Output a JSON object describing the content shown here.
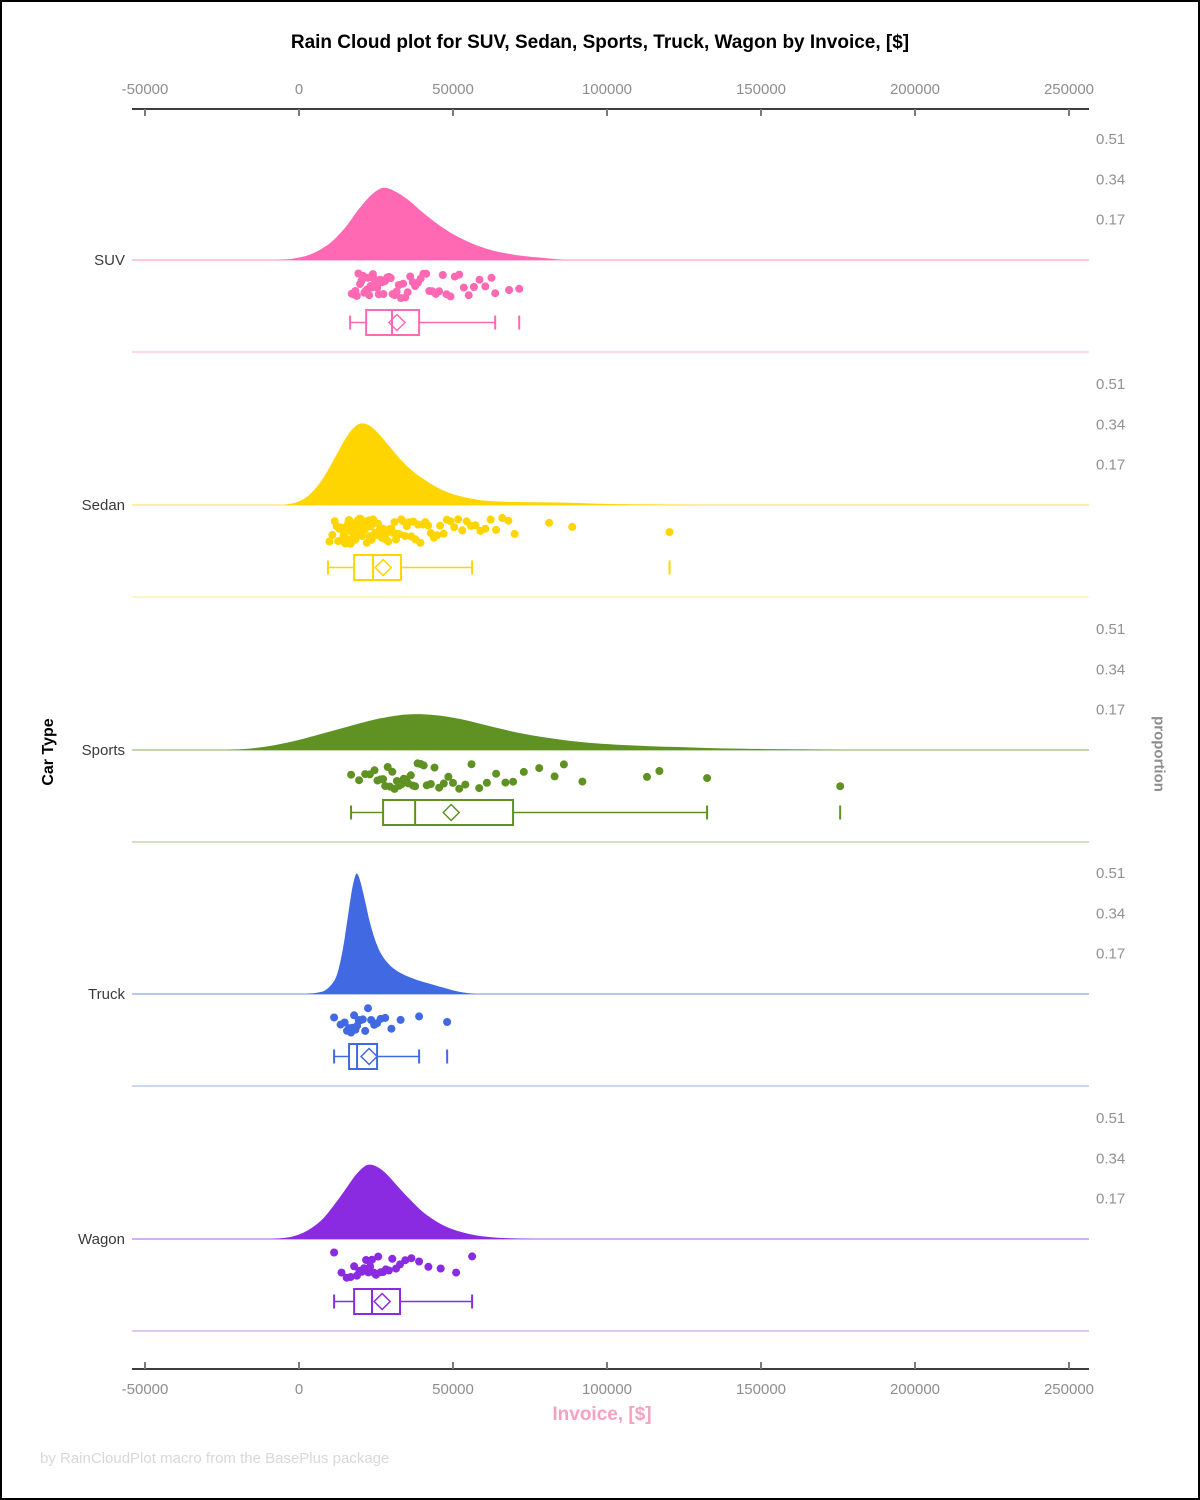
{
  "title": "Rain Cloud plot for SUV, Sedan, Sports, Truck, Wagon by Invoice, [$]",
  "footer": "by RainCloudPlot macro from the BasePlus package",
  "colors": {
    "axis_line": "#3d3d3d",
    "tick_label": "#8e8e8e",
    "category_label": "#3a3a3a",
    "proportion_label": "#919191",
    "x_label_pink": "#f6a2bf",
    "footer_gray": "#d8d8d8"
  },
  "chart_data": {
    "type": "raincloud",
    "title": "Rain Cloud plot for SUV, Sedan, Sports, Truck, Wagon by Invoice, [$]",
    "xlabel": "Invoice, [$]",
    "ylabel": "Car Type",
    "ylabel2": "proportion",
    "x_range": [
      -50000,
      250000
    ],
    "x_ticks": [
      -50000,
      0,
      50000,
      100000,
      150000,
      200000,
      250000
    ],
    "proportion_ticks": [
      0.17,
      0.34,
      0.51
    ],
    "legend": "none",
    "grid": "off",
    "series": [
      {
        "name": "SUV",
        "color": "#FF69B4",
        "density": [
          [
            -8000,
            0
          ],
          [
            -2000,
            0.006
          ],
          [
            4000,
            0.025
          ],
          [
            10000,
            0.07
          ],
          [
            15000,
            0.135
          ],
          [
            19000,
            0.205
          ],
          [
            23000,
            0.265
          ],
          [
            26000,
            0.295
          ],
          [
            28500,
            0.3
          ],
          [
            32000,
            0.28
          ],
          [
            36000,
            0.245
          ],
          [
            40000,
            0.2
          ],
          [
            45000,
            0.15
          ],
          [
            50000,
            0.108
          ],
          [
            56000,
            0.07
          ],
          [
            62000,
            0.043
          ],
          [
            68000,
            0.026
          ],
          [
            74000,
            0.015
          ],
          [
            80000,
            0.008
          ],
          [
            86000,
            0
          ]
        ],
        "box": {
          "whisker_low": 16600,
          "q1": 21800,
          "median": 30200,
          "q3": 39000,
          "whisker_high": 63700,
          "mean": 31800,
          "outliers": [
            71500
          ]
        },
        "points": [
          17100,
          17800,
          18300,
          18800,
          19300,
          19800,
          20300,
          20800,
          21200,
          21600,
          22000,
          22400,
          22800,
          23200,
          23600,
          24000,
          24400,
          24900,
          25400,
          25900,
          26400,
          26900,
          27400,
          28000,
          28600,
          29200,
          29800,
          30400,
          31000,
          31700,
          32400,
          33100,
          33800,
          34500,
          35300,
          36100,
          36900,
          37700,
          38600,
          39500,
          40400,
          41300,
          42300,
          43300,
          44400,
          45500,
          46700,
          47900,
          49200,
          50600,
          52000,
          53500,
          55100,
          56800,
          58600,
          60500,
          62500,
          63700,
          68200,
          71500
        ]
      },
      {
        "name": "Sedan",
        "color": "#FFD500",
        "density": [
          [
            -5000,
            0
          ],
          [
            0,
            0.015
          ],
          [
            4000,
            0.05
          ],
          [
            8000,
            0.115
          ],
          [
            12000,
            0.205
          ],
          [
            15000,
            0.275
          ],
          [
            18000,
            0.325
          ],
          [
            20500,
            0.34
          ],
          [
            23000,
            0.33
          ],
          [
            26000,
            0.295
          ],
          [
            29000,
            0.25
          ],
          [
            33000,
            0.19
          ],
          [
            37000,
            0.14
          ],
          [
            42000,
            0.095
          ],
          [
            47000,
            0.06
          ],
          [
            52000,
            0.038
          ],
          [
            58000,
            0.022
          ],
          [
            64000,
            0.015
          ],
          [
            72000,
            0.012
          ],
          [
            80000,
            0.011
          ],
          [
            88000,
            0.009
          ],
          [
            96000,
            0.006
          ],
          [
            106000,
            0.003
          ],
          [
            118000,
            0.0015
          ],
          [
            130000,
            0
          ]
        ],
        "box": {
          "whisker_low": 9400,
          "q1": 17900,
          "median": 24000,
          "q3": 33100,
          "whisker_high": 56200,
          "mean": 27300,
          "outliers": [
            120300
          ]
        },
        "points": [
          9900,
          10800,
          11600,
          12200,
          12700,
          13100,
          13500,
          13900,
          14200,
          14500,
          14800,
          15000,
          15300,
          15500,
          15700,
          15900,
          16100,
          16300,
          16500,
          16700,
          16900,
          17100,
          17300,
          17500,
          17700,
          17900,
          18100,
          18300,
          18500,
          18700,
          18900,
          19100,
          19300,
          19500,
          19700,
          19900,
          20100,
          20300,
          20500,
          20700,
          20900,
          21100,
          21400,
          21700,
          22000,
          22300,
          22600,
          22900,
          23200,
          23500,
          23800,
          24100,
          24400,
          24700,
          25000,
          25300,
          25700,
          26100,
          26500,
          26900,
          27300,
          27700,
          28100,
          28500,
          29000,
          29500,
          30000,
          30500,
          31000,
          31500,
          32000,
          32600,
          33200,
          33800,
          34400,
          35000,
          35700,
          36400,
          37100,
          37800,
          38600,
          39400,
          40200,
          41000,
          41900,
          42800,
          43800,
          44800,
          45800,
          46900,
          48000,
          49200,
          50400,
          51700,
          53000,
          54400,
          55800,
          57300,
          58900,
          60500,
          62200,
          64000,
          66000,
          68000,
          70000,
          81200,
          88700,
          120300
        ]
      },
      {
        "name": "Sports",
        "color": "#5F9222",
        "density": [
          [
            -24000,
            0
          ],
          [
            -16000,
            0.006
          ],
          [
            -8000,
            0.02
          ],
          [
            0,
            0.042
          ],
          [
            8000,
            0.07
          ],
          [
            16000,
            0.098
          ],
          [
            24000,
            0.125
          ],
          [
            30000,
            0.14
          ],
          [
            35000,
            0.148
          ],
          [
            40000,
            0.149
          ],
          [
            46000,
            0.143
          ],
          [
            52000,
            0.13
          ],
          [
            58000,
            0.112
          ],
          [
            65000,
            0.09
          ],
          [
            72000,
            0.07
          ],
          [
            80000,
            0.052
          ],
          [
            88000,
            0.038
          ],
          [
            96000,
            0.028
          ],
          [
            105000,
            0.021
          ],
          [
            114000,
            0.016
          ],
          [
            124000,
            0.012
          ],
          [
            134000,
            0.008
          ],
          [
            145000,
            0.005
          ],
          [
            157000,
            0.003
          ],
          [
            168000,
            0.0015
          ],
          [
            178000,
            0
          ]
        ],
        "box": {
          "whisker_low": 16900,
          "q1": 27300,
          "median": 37700,
          "q3": 69500,
          "whisker_high": 132500,
          "mean": 49400,
          "outliers": [
            175700
          ]
        },
        "points": [
          16900,
          19500,
          21500,
          23000,
          24500,
          25500,
          26500,
          27300,
          28000,
          28800,
          29500,
          30300,
          31000,
          31800,
          32500,
          33300,
          34000,
          34800,
          35500,
          36300,
          37000,
          37700,
          38500,
          39500,
          40500,
          41500,
          42800,
          44000,
          45500,
          47000,
          48500,
          50000,
          52000,
          54000,
          56000,
          58500,
          61000,
          64000,
          67000,
          69500,
          73000,
          78000,
          83000,
          86000,
          92000,
          113000,
          117000,
          132500,
          175700
        ]
      },
      {
        "name": "Truck",
        "color": "#4169E1",
        "density": [
          [
            2000,
            0
          ],
          [
            6000,
            0.006
          ],
          [
            9000,
            0.02
          ],
          [
            12000,
            0.07
          ],
          [
            14000,
            0.17
          ],
          [
            15500,
            0.29
          ],
          [
            17000,
            0.42
          ],
          [
            18200,
            0.49
          ],
          [
            19000,
            0.5
          ],
          [
            20000,
            0.465
          ],
          [
            21500,
            0.385
          ],
          [
            23000,
            0.3
          ],
          [
            25000,
            0.215
          ],
          [
            27000,
            0.16
          ],
          [
            29500,
            0.12
          ],
          [
            32000,
            0.095
          ],
          [
            35000,
            0.075
          ],
          [
            38000,
            0.06
          ],
          [
            41000,
            0.048
          ],
          [
            44000,
            0.037
          ],
          [
            47000,
            0.026
          ],
          [
            50000,
            0.015
          ],
          [
            53000,
            0.007
          ],
          [
            57000,
            0
          ]
        ],
        "box": {
          "whisker_low": 11400,
          "q1": 16250,
          "median": 18850,
          "q3": 25350,
          "whisker_high": 39000,
          "mean": 22750,
          "outliers": [
            48100
          ]
        },
        "points": [
          11400,
          13500,
          14800,
          15600,
          16250,
          16900,
          17400,
          17900,
          18300,
          18850,
          19400,
          20000,
          20700,
          21500,
          22400,
          23400,
          24400,
          25350,
          26500,
          28000,
          30000,
          33000,
          39000,
          48100
        ]
      },
      {
        "name": "Wagon",
        "color": "#8A2BE2",
        "density": [
          [
            -9000,
            0
          ],
          [
            -3000,
            0.008
          ],
          [
            2000,
            0.03
          ],
          [
            7000,
            0.075
          ],
          [
            11000,
            0.135
          ],
          [
            15000,
            0.205
          ],
          [
            18000,
            0.26
          ],
          [
            21000,
            0.3
          ],
          [
            23000,
            0.31
          ],
          [
            25500,
            0.3
          ],
          [
            28500,
            0.27
          ],
          [
            32000,
            0.22
          ],
          [
            36000,
            0.165
          ],
          [
            40000,
            0.115
          ],
          [
            44000,
            0.078
          ],
          [
            48000,
            0.05
          ],
          [
            53000,
            0.028
          ],
          [
            58000,
            0.014
          ],
          [
            64000,
            0.006
          ],
          [
            70000,
            0.002
          ],
          [
            76000,
            0
          ]
        ],
        "box": {
          "whisker_low": 11400,
          "q1": 17900,
          "median": 23700,
          "q3": 32800,
          "whisker_high": 56200,
          "mean": 27000,
          "outliers": []
        },
        "points": [
          11400,
          13800,
          15500,
          16800,
          17900,
          18800,
          19600,
          20400,
          21100,
          21800,
          22500,
          23100,
          23700,
          24300,
          25000,
          25700,
          26500,
          27300,
          28200,
          29200,
          30300,
          31500,
          32800,
          34500,
          36500,
          39000,
          42000,
          46000,
          51000,
          56200
        ]
      }
    ]
  }
}
